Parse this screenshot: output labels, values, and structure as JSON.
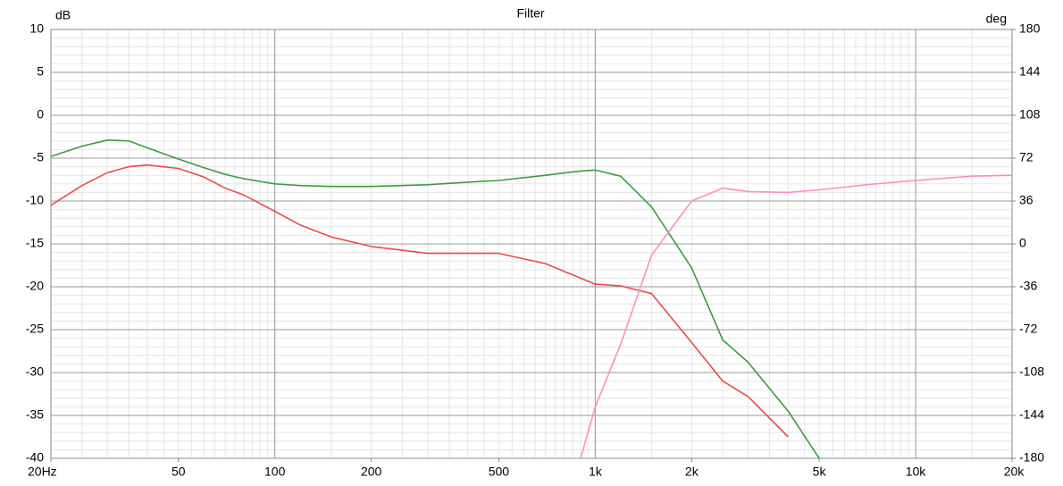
{
  "chart_data": {
    "type": "line",
    "title": "Filter",
    "y_label": "dB",
    "y2_label": "deg",
    "log_x": true,
    "grid": true,
    "x": [
      20,
      25,
      30,
      35,
      40,
      50,
      60,
      70,
      80,
      100,
      120,
      150,
      200,
      300,
      400,
      500,
      700,
      900,
      1000,
      1200,
      1500,
      2000,
      2500,
      3000,
      4000,
      5000,
      7000,
      10000,
      15000,
      20000
    ],
    "xlim": [
      20,
      20000
    ],
    "xticks": [
      {
        "value": 20,
        "label": "20Hz"
      },
      50,
      100,
      200,
      500,
      {
        "value": 1000,
        "label": "1k"
      },
      {
        "value": 2000,
        "label": "2k"
      },
      {
        "value": 5000,
        "label": "5k"
      },
      {
        "value": 10000,
        "label": "10k"
      },
      {
        "value": 20000,
        "label": "20k"
      }
    ],
    "ylim": [
      -40,
      10
    ],
    "yticks": [
      10,
      5,
      0,
      -5,
      -10,
      -15,
      -20,
      -25,
      -30,
      -35,
      -40
    ],
    "y2lim": [
      -180,
      180
    ],
    "y2ticks": [
      180,
      144,
      108,
      72,
      36,
      0,
      -36,
      -72,
      -108,
      -144,
      -180
    ],
    "series": [
      {
        "color": "#3c9c3c",
        "values": [
          -4.8,
          -3.6,
          -2.9,
          -3.0,
          -3.8,
          -5.1,
          -6.1,
          -6.9,
          -7.4,
          -8.0,
          -8.2,
          -8.3,
          -8.3,
          -8.1,
          -7.8,
          -7.6,
          -7.0,
          -6.5,
          -6.4,
          -7.1,
          -10.7,
          -17.8,
          -26.2,
          -28.8,
          -34.5,
          -40,
          null,
          null,
          null,
          null
        ]
      },
      {
        "color": "#f04848",
        "values": [
          -10.5,
          -8.2,
          -6.7,
          -6.0,
          -5.8,
          -6.2,
          -7.2,
          -8.5,
          -9.3,
          -11.2,
          -12.8,
          -14.2,
          -15.3,
          -16.1,
          -16.1,
          -16.1,
          -17.3,
          -19.0,
          -19.7,
          -19.9,
          -20.8,
          -26.5,
          -31.0,
          -32.8,
          -37.5,
          null,
          null,
          null,
          null,
          null
        ]
      },
      {
        "color": "#ff8cc8",
        "values": [
          null,
          null,
          null,
          null,
          null,
          null,
          null,
          null,
          null,
          null,
          null,
          null,
          null,
          null,
          null,
          null,
          null,
          -40,
          -34,
          -26.7,
          -16.3,
          -10.0,
          -8.5,
          -8.9,
          -9.0,
          -8.7,
          -8.1,
          -7.6,
          -7.1,
          -7.0
        ]
      }
    ]
  }
}
